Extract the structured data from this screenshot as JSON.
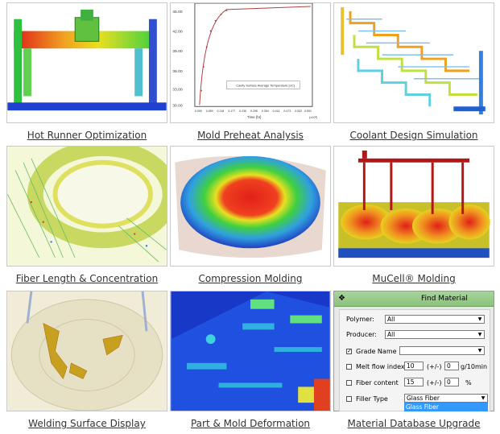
{
  "tiles": [
    {
      "caption": "Hot Runner Optimization"
    },
    {
      "caption": "Mold Preheat Analysis"
    },
    {
      "caption": "Coolant Design Simulation"
    },
    {
      "caption": "Fiber Length & Concentration"
    },
    {
      "caption": "Compression Molding"
    },
    {
      "caption": "MuCell® Molding"
    },
    {
      "caption": "Welding Surface Display"
    },
    {
      "caption": "Part & Mold Deformation"
    },
    {
      "caption": "Material Database Upgrade"
    }
  ],
  "preheat_plot": {
    "legend": "Cavity Surface Average Temperature [oC]",
    "xlabel": "Time [hr]",
    "x_unit": "(x10³)",
    "x_ticks": [
      "0.000",
      "0.059",
      "0.118",
      "0.177",
      "0.236",
      "0.295",
      "0.354",
      "0.414",
      "0.473",
      "0.532",
      "0.591"
    ],
    "y_ticks": [
      "45.00",
      "42.00",
      "39.00",
      "36.00",
      "33.00",
      "30.00"
    ]
  },
  "find_material": {
    "title": "Find Material",
    "polymer_label": "Polymer:",
    "polymer_value": "All",
    "producer_label": "Producer:",
    "producer_value": "All",
    "grade_label": "Grade Name",
    "grade_checked_mark": "✓",
    "melt_label": "Melt flow index",
    "melt_value": "10",
    "melt_pm": "(+/-)",
    "melt_tol": "0",
    "melt_unit": "g/10min",
    "fiber_label": "Fiber content",
    "fiber_value": "15",
    "fiber_pm": "(+/-)",
    "fiber_tol": "0",
    "fiber_unit": "%",
    "filler_label": "Filler Type",
    "filler_value": "Glass Fiber",
    "filler_option": "Glass Fiber"
  },
  "colors": {
    "caption": "#333333",
    "heat_red": "#e0201a",
    "heat_green": "#3fd23c",
    "heat_blue": "#2060e0"
  }
}
